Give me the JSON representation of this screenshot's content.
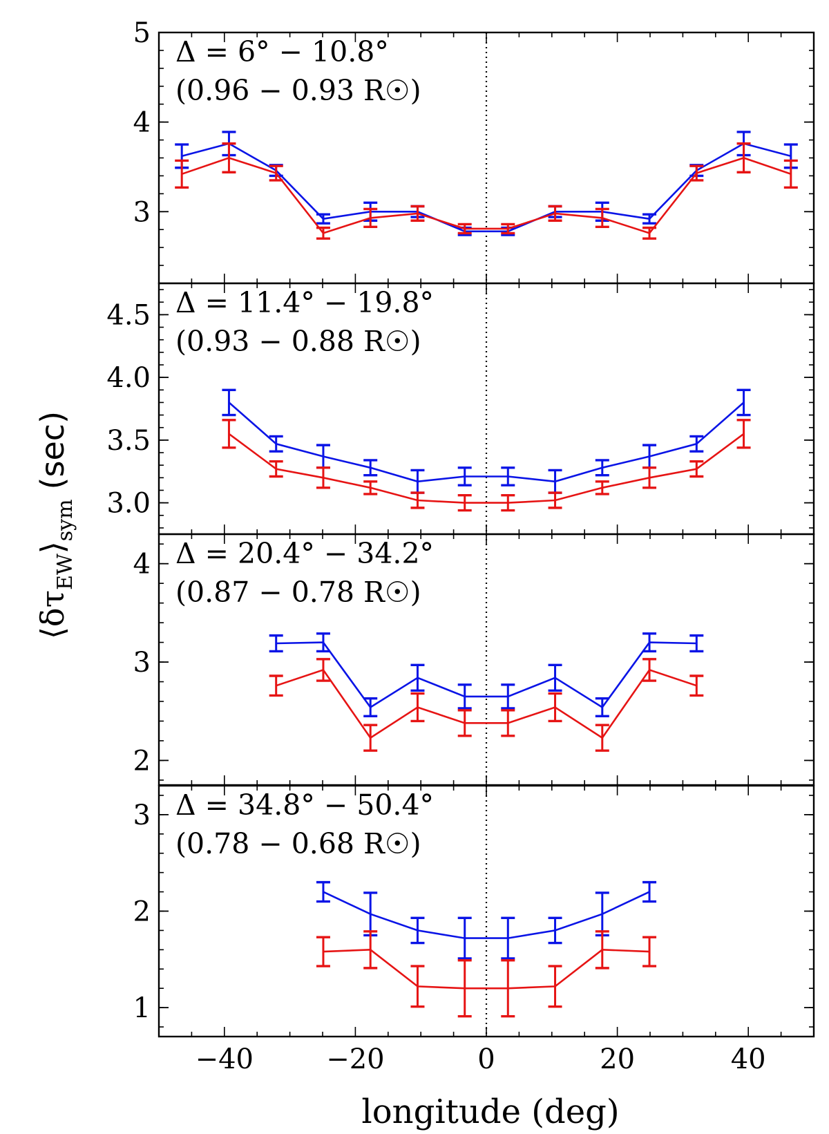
{
  "chart_data": [
    {
      "type": "line",
      "title_line1": "Δ = 6° − 10.8°",
      "title_line2": "(0.96 − 0.93 R☉)",
      "ylim": [
        2.2,
        5.0
      ],
      "yticks": [
        3,
        4,
        5
      ],
      "ytick_labels": [
        "3",
        "4",
        "5"
      ],
      "series": [
        {
          "name": "blue",
          "color": "#0a14e6",
          "x": [
            -46.5,
            -39.3,
            -32.1,
            -24.9,
            -17.7,
            -10.5,
            -3.3,
            3.3,
            10.5,
            17.7,
            24.9,
            32.1,
            39.3,
            46.5
          ],
          "y": [
            3.62,
            3.76,
            3.46,
            2.92,
            3.0,
            3.0,
            2.78,
            2.78,
            3.0,
            3.0,
            2.92,
            3.46,
            3.76,
            3.62
          ],
          "err": [
            0.13,
            0.13,
            0.06,
            0.05,
            0.1,
            0.06,
            0.04,
            0.04,
            0.06,
            0.1,
            0.05,
            0.06,
            0.13,
            0.13
          ]
        },
        {
          "name": "red",
          "color": "#e61414",
          "x": [
            -46.5,
            -39.3,
            -32.1,
            -24.9,
            -17.7,
            -10.5,
            -3.3,
            3.3,
            10.5,
            17.7,
            24.9,
            32.1,
            39.3,
            46.5
          ],
          "y": [
            3.42,
            3.6,
            3.43,
            2.76,
            2.93,
            2.98,
            2.81,
            2.81,
            2.98,
            2.93,
            2.76,
            3.43,
            3.6,
            3.42
          ],
          "err": [
            0.15,
            0.16,
            0.08,
            0.06,
            0.1,
            0.08,
            0.05,
            0.05,
            0.08,
            0.1,
            0.06,
            0.08,
            0.16,
            0.15
          ]
        }
      ]
    },
    {
      "type": "line",
      "title_line1": "Δ = 11.4° − 19.8°",
      "title_line2": "(0.93 − 0.88 R☉)",
      "ylim": [
        2.75,
        4.75
      ],
      "yticks": [
        3.0,
        3.5,
        4.0,
        4.5
      ],
      "ytick_labels": [
        "3.0",
        "3.5",
        "4.0",
        "4.5"
      ],
      "series": [
        {
          "name": "blue",
          "color": "#0a14e6",
          "x": [
            -39.3,
            -32.1,
            -24.9,
            -17.7,
            -10.5,
            -3.3,
            3.3,
            10.5,
            17.7,
            24.9,
            32.1,
            39.3
          ],
          "y": [
            3.8,
            3.47,
            3.37,
            3.28,
            3.17,
            3.21,
            3.21,
            3.17,
            3.28,
            3.37,
            3.47,
            3.8
          ],
          "err": [
            0.1,
            0.06,
            0.09,
            0.06,
            0.09,
            0.07,
            0.07,
            0.09,
            0.06,
            0.09,
            0.06,
            0.1
          ]
        },
        {
          "name": "red",
          "color": "#e61414",
          "x": [
            -39.3,
            -32.1,
            -24.9,
            -17.7,
            -10.5,
            -3.3,
            3.3,
            10.5,
            17.7,
            24.9,
            32.1,
            39.3
          ],
          "y": [
            3.55,
            3.27,
            3.2,
            3.12,
            3.02,
            3.0,
            3.0,
            3.02,
            3.12,
            3.2,
            3.27,
            3.55
          ],
          "err": [
            0.11,
            0.06,
            0.08,
            0.05,
            0.06,
            0.06,
            0.06,
            0.06,
            0.05,
            0.08,
            0.06,
            0.11
          ]
        }
      ]
    },
    {
      "type": "line",
      "title_line1": "Δ = 20.4° − 34.2°",
      "title_line2": "(0.87 − 0.78 R☉)",
      "ylim": [
        1.75,
        4.3
      ],
      "yticks": [
        2,
        3,
        4
      ],
      "ytick_labels": [
        "2",
        "3",
        "4"
      ],
      "series": [
        {
          "name": "blue",
          "color": "#0a14e6",
          "x": [
            -32.1,
            -24.9,
            -17.7,
            -10.5,
            -3.3,
            3.3,
            10.5,
            17.7,
            24.9,
            32.1
          ],
          "y": [
            3.19,
            3.2,
            2.54,
            2.84,
            2.65,
            2.65,
            2.84,
            2.54,
            3.2,
            3.19
          ],
          "err": [
            0.08,
            0.09,
            0.09,
            0.13,
            0.12,
            0.12,
            0.13,
            0.09,
            0.09,
            0.08
          ]
        },
        {
          "name": "red",
          "color": "#e61414",
          "x": [
            -32.1,
            -24.9,
            -17.7,
            -10.5,
            -3.3,
            3.3,
            10.5,
            17.7,
            24.9,
            32.1
          ],
          "y": [
            2.76,
            2.92,
            2.23,
            2.54,
            2.38,
            2.38,
            2.54,
            2.23,
            2.92,
            2.76
          ],
          "err": [
            0.1,
            0.11,
            0.13,
            0.14,
            0.13,
            0.13,
            0.14,
            0.13,
            0.11,
            0.1
          ]
        }
      ]
    },
    {
      "type": "line",
      "title_line1": "Δ = 34.8° − 50.4°",
      "title_line2": "(0.78 − 0.68 R☉)",
      "ylim": [
        0.7,
        3.3
      ],
      "yticks": [
        1,
        2,
        3
      ],
      "ytick_labels": [
        "1",
        "2",
        "3"
      ],
      "series": [
        {
          "name": "blue",
          "color": "#0a14e6",
          "x": [
            -24.9,
            -17.7,
            -10.5,
            -3.3,
            3.3,
            10.5,
            17.7,
            24.9
          ],
          "y": [
            2.2,
            1.97,
            1.8,
            1.72,
            1.72,
            1.8,
            1.97,
            2.2
          ],
          "err": [
            0.1,
            0.22,
            0.13,
            0.21,
            0.21,
            0.13,
            0.22,
            0.1
          ]
        },
        {
          "name": "red",
          "color": "#e61414",
          "x": [
            -24.9,
            -17.7,
            -10.5,
            -3.3,
            3.3,
            10.5,
            17.7,
            24.9
          ],
          "y": [
            1.58,
            1.6,
            1.22,
            1.2,
            1.2,
            1.22,
            1.6,
            1.58
          ],
          "err": [
            0.15,
            0.19,
            0.21,
            0.29,
            0.29,
            0.21,
            0.19,
            0.15
          ]
        }
      ]
    }
  ],
  "xaxis": {
    "xlim": [
      -50,
      50
    ],
    "ticks": [
      -40,
      -20,
      0,
      20,
      40
    ],
    "tick_labels": [
      "−40",
      "−20",
      "0",
      "20",
      "40"
    ],
    "label": "longitude (deg)"
  },
  "yaxis": {
    "label_prefix": "⟨δτ",
    "label_subscript": "EW",
    "label_close": "⟩",
    "label_subscript2": "sym",
    "label_unit": "(sec)"
  }
}
